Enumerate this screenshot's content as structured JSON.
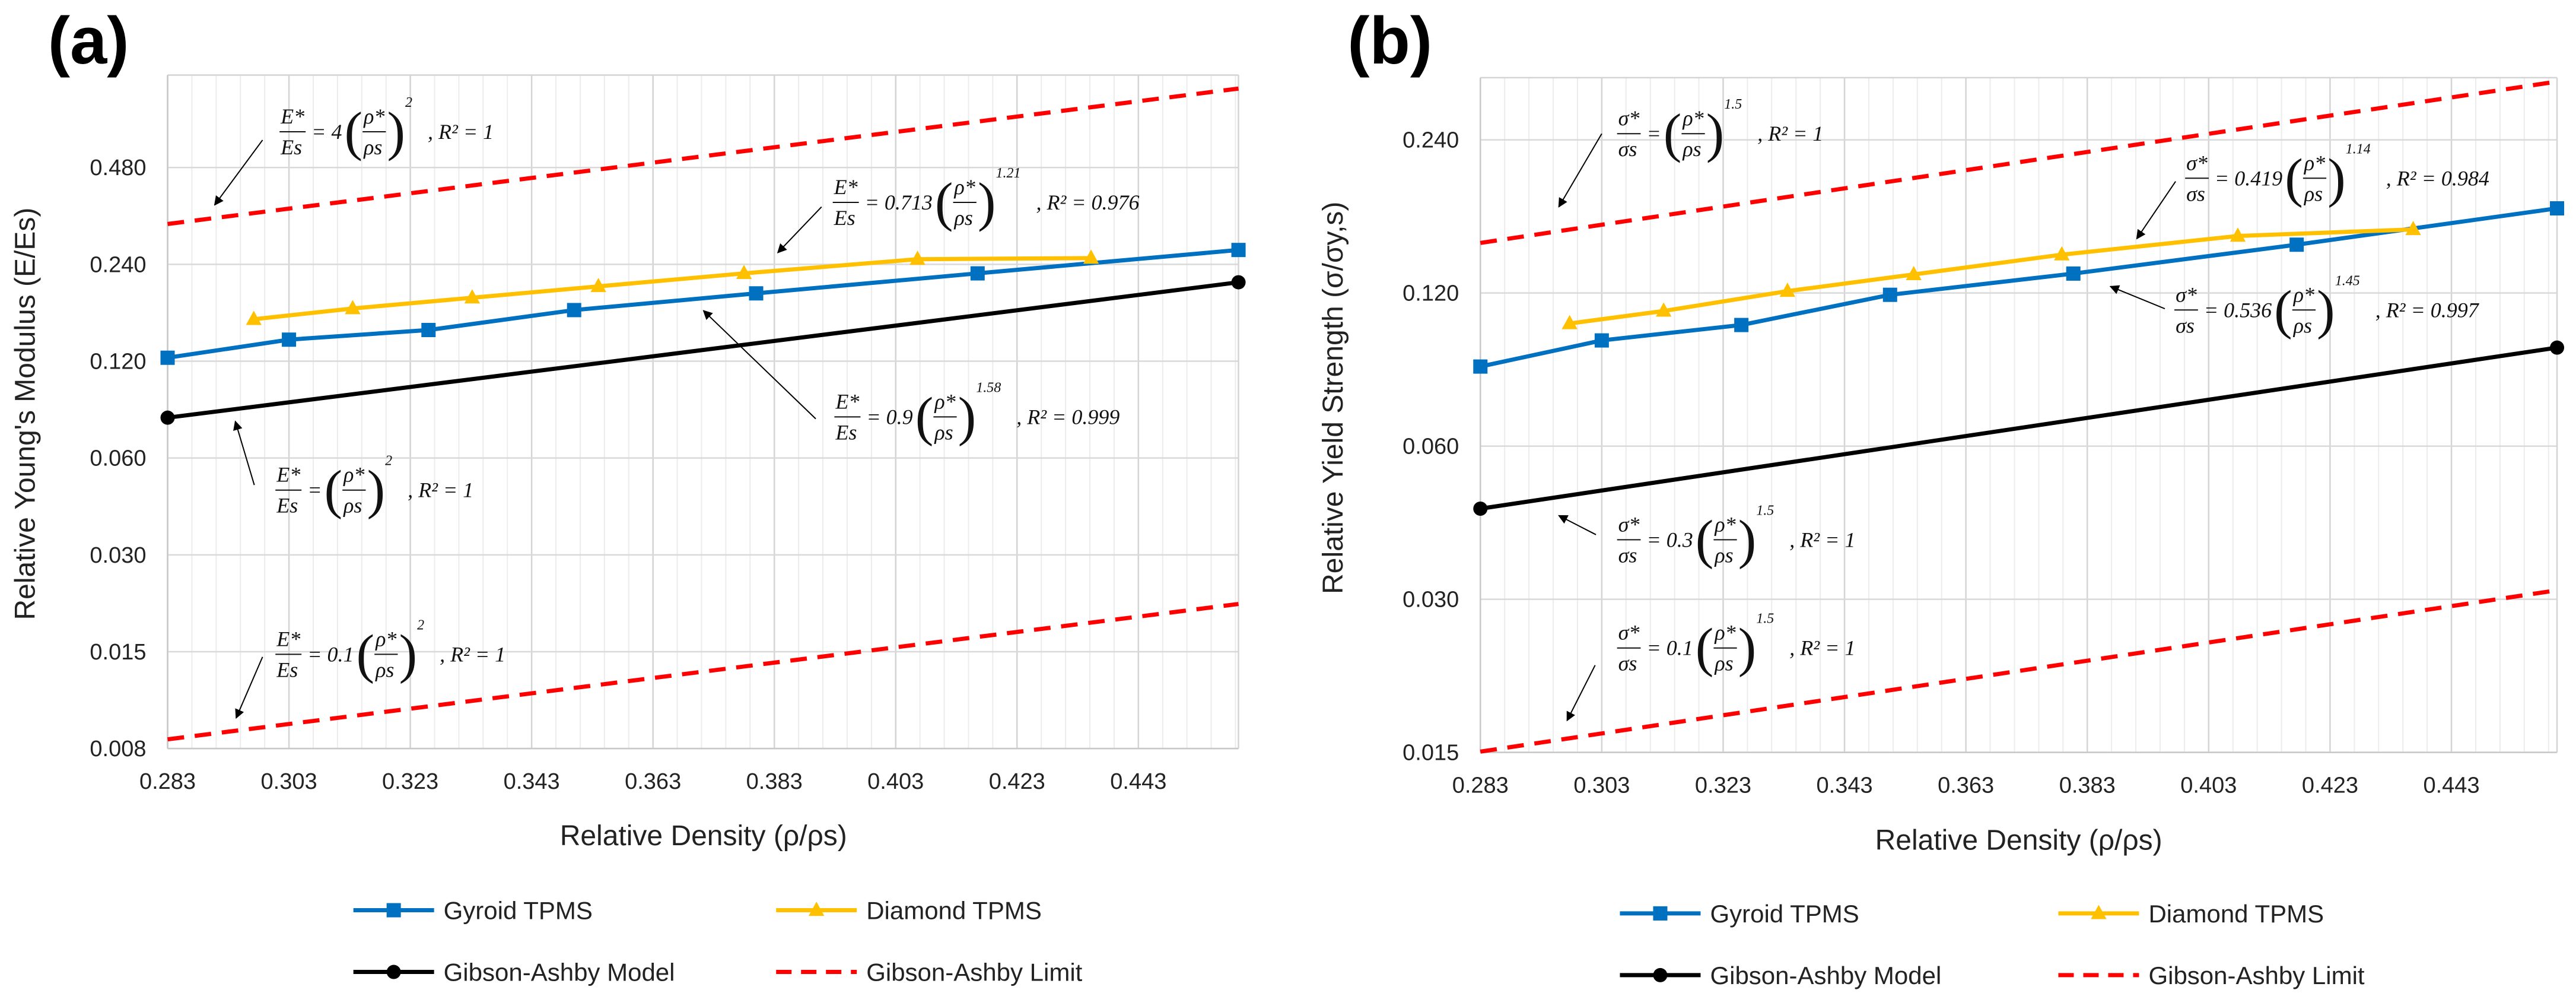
{
  "chart_data": [
    {
      "id": "a",
      "panel_label": "(a)",
      "type": "line",
      "xlabel": "Relative Density (ρ/ρs)",
      "ylabel": "Relative Young's  Modulus (E/Es)",
      "xscale": "linear",
      "yscale": "log2",
      "xlim": [
        0.283,
        0.4595
      ],
      "ylim": [
        0.0075,
        0.93
      ],
      "xticks": [
        "0.283",
        "0.303",
        "0.323",
        "0.343",
        "0.363",
        "0.383",
        "0.403",
        "0.423",
        "0.443"
      ],
      "xtick_values": [
        0.283,
        0.303,
        0.323,
        0.343,
        0.363,
        0.383,
        0.403,
        0.423,
        0.443
      ],
      "yticks": [
        "0.008",
        "0.015",
        "0.030",
        "0.060",
        "0.120",
        "0.240",
        "0.480"
      ],
      "ytick_values": [
        0.0075,
        0.015,
        0.03,
        0.06,
        0.12,
        0.24,
        0.48
      ],
      "grid": true,
      "legend_position": "bottom",
      "series": [
        {
          "name": "Gyroid TPMS",
          "color": "#0070C0",
          "marker": "square",
          "dash": false,
          "x": [
            0.283,
            0.303,
            0.326,
            0.35,
            0.38,
            0.4165,
            0.4595
          ],
          "y": [
            0.123,
            0.14,
            0.15,
            0.173,
            0.195,
            0.225,
            0.266
          ]
        },
        {
          "name": "Diamond TPMS",
          "color": "#FFC000",
          "marker": "triangle",
          "dash": false,
          "x": [
            0.2972,
            0.3135,
            0.3332,
            0.354,
            0.378,
            0.4066,
            0.4352
          ],
          "y": [
            0.162,
            0.175,
            0.189,
            0.205,
            0.225,
            0.249,
            0.251
          ]
        },
        {
          "name": "Gibson-Ashby Model",
          "color": "#000000",
          "marker": "circle",
          "dash": false,
          "markers_at_ends": true,
          "x": [
            0.283,
            0.4595
          ],
          "y": [
            0.0801,
            0.2111
          ]
        },
        {
          "name": "Gibson-Ashby Limit",
          "color": "#FF0000",
          "marker": "none",
          "dash": true,
          "x": [
            0.283,
            0.4595
          ],
          "y": [
            0.3204,
            0.8446
          ]
        },
        {
          "name": "Gibson-Ashby Limit (lower)",
          "legend": false,
          "color": "#FF0000",
          "marker": "none",
          "dash": true,
          "x": [
            0.283,
            0.4595
          ],
          "y": [
            0.00801,
            0.02111
          ]
        }
      ],
      "annotations": [
        {
          "num": "E*",
          "den": "Es",
          "coef": "= 4",
          "exp": "2",
          "r2": ", R² = 1"
        },
        {
          "num": "E*",
          "den": "Es",
          "coef": "= 0.713",
          "exp": "1.21",
          "r2": ", R² = 0.976"
        },
        {
          "num": "E*",
          "den": "Es",
          "coef": "= 0.9",
          "exp": "1.58",
          "r2": ", R² = 0.999"
        },
        {
          "num": "E*",
          "den": "Es",
          "coef": "=",
          "exp": "2",
          "r2": ", R² = 1"
        },
        {
          "num": "E*",
          "den": "Es",
          "coef": "= 0.1",
          "exp": "2",
          "r2": ", R² = 1"
        }
      ]
    },
    {
      "id": "b",
      "panel_label": "(b)",
      "type": "line",
      "xlabel": "Relative Density (ρ/ρs)",
      "ylabel": "Relative Yield Strength (σ/σy,s)",
      "xscale": "linear",
      "yscale": "log2",
      "xlim": [
        0.283,
        0.4604
      ],
      "ylim": [
        0.015,
        0.318
      ],
      "xticks": [
        "0.283",
        "0.303",
        "0.323",
        "0.343",
        "0.363",
        "0.383",
        "0.403",
        "0.423",
        "0.443"
      ],
      "xtick_values": [
        0.283,
        0.303,
        0.323,
        0.343,
        0.363,
        0.383,
        0.403,
        0.423,
        0.443
      ],
      "yticks": [
        "0.015",
        "0.030",
        "0.060",
        "0.120",
        "0.240"
      ],
      "ytick_values": [
        0.015,
        0.03,
        0.06,
        0.12,
        0.24
      ],
      "grid": true,
      "legend_position": "bottom",
      "series": [
        {
          "name": "Gyroid TPMS",
          "color": "#0070C0",
          "marker": "square",
          "dash": false,
          "x": [
            0.283,
            0.303,
            0.326,
            0.3505,
            0.3807,
            0.4175,
            0.4604
          ],
          "y": [
            0.086,
            0.0968,
            0.1038,
            0.119,
            0.131,
            0.1493,
            0.176
          ]
        },
        {
          "name": "Diamond TPMS",
          "color": "#FFC000",
          "marker": "triangle",
          "dash": false,
          "x": [
            0.2977,
            0.3132,
            0.3336,
            0.3544,
            0.3788,
            0.4078,
            0.4367
          ],
          "y": [
            0.1045,
            0.1106,
            0.121,
            0.1305,
            0.1427,
            0.1553,
            0.16
          ]
        },
        {
          "name": "Gibson-Ashby Model",
          "color": "#000000",
          "marker": "circle",
          "dash": false,
          "markers_at_ends": true,
          "x": [
            0.283,
            0.4604
          ],
          "y": [
            0.0452,
            0.0937
          ]
        },
        {
          "name": "Gibson-Ashby Limit",
          "color": "#FF0000",
          "marker": "none",
          "dash": true,
          "x": [
            0.283,
            0.4604
          ],
          "y": [
            0.1505,
            0.3124
          ]
        },
        {
          "name": "Gibson-Ashby Limit (lower)",
          "legend": false,
          "color": "#FF0000",
          "marker": "none",
          "dash": true,
          "x": [
            0.283,
            0.4604
          ],
          "y": [
            0.01505,
            0.03124
          ]
        }
      ],
      "annotations": [
        {
          "num": "σ*",
          "den": "σs",
          "coef": "=",
          "exp": "1.5",
          "r2": ", R² = 1"
        },
        {
          "num": "σ*",
          "den": "σs",
          "coef": "= 0.419",
          "exp": "1.14",
          "r2": ", R² = 0.984"
        },
        {
          "num": "σ*",
          "den": "σs",
          "coef": "= 0.536",
          "exp": "1.45",
          "r2": ", R² = 0.997"
        },
        {
          "num": "σ*",
          "den": "σs",
          "coef": "= 0.3",
          "exp": "1.5",
          "r2": ", R² = 1"
        },
        {
          "num": "σ*",
          "den": "σs",
          "coef": "= 0.1",
          "exp": "1.5",
          "r2": ", R² = 1"
        }
      ]
    }
  ]
}
